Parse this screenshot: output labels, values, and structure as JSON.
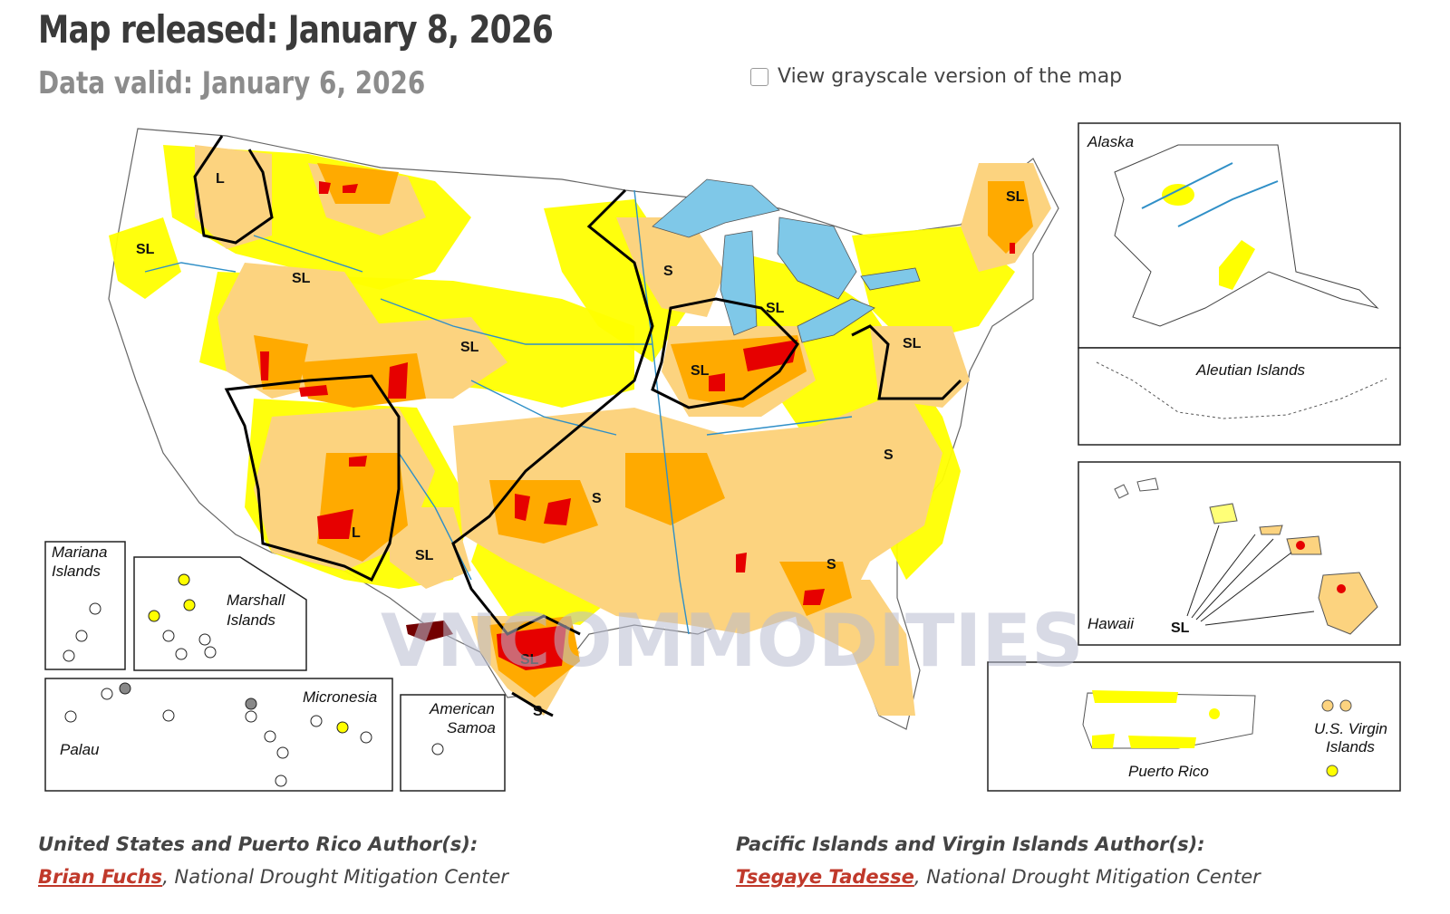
{
  "header": {
    "title": "Map released: January 8, 2026",
    "subtitle": "Data valid: January 6, 2026"
  },
  "grayscale_toggle": {
    "label": "View grayscale version of the map",
    "checked": false
  },
  "colors": {
    "d0_abnormally_dry": "#ffff00",
    "d1_moderate": "#fcd37f",
    "d2_severe": "#ffaa00",
    "d3_extreme": "#e60000",
    "d4_exceptional": "#730000",
    "water": "#7fc8e8",
    "boundary": "#000000",
    "link": "#c0392b"
  },
  "map": {
    "impact_labels": [
      "L",
      "SL",
      "SL",
      "S",
      "SL",
      "SL",
      "SL",
      "SL",
      "SL",
      "L",
      "S",
      "S",
      "S",
      "S",
      "SL",
      "SL",
      "S"
    ],
    "insets": {
      "alaska": "Alaska",
      "aleutian": "Aleutian Islands",
      "hawaii": "Hawaii",
      "hawaii_code": "SL",
      "mariana": [
        "Mariana",
        "Islands"
      ],
      "marshall": [
        "Marshall",
        "Islands"
      ],
      "micronesia": "Micronesia",
      "palau": "Palau",
      "samoa": [
        "American",
        "Samoa"
      ],
      "puerto_rico": "Puerto Rico",
      "usvi": [
        "U.S. Virgin",
        "Islands"
      ],
      "small_code": "s"
    },
    "watermark": "VNCOMMODITIES"
  },
  "authors": {
    "us": {
      "heading": "United States and Puerto Rico Author(s):",
      "name": "Brian Fuchs",
      "org": ", National Drought Mitigation Center"
    },
    "pacific": {
      "heading": "Pacific Islands and Virgin Islands Author(s):",
      "name": "Tsegaye Tadesse",
      "org": ", National Drought Mitigation Center"
    }
  }
}
